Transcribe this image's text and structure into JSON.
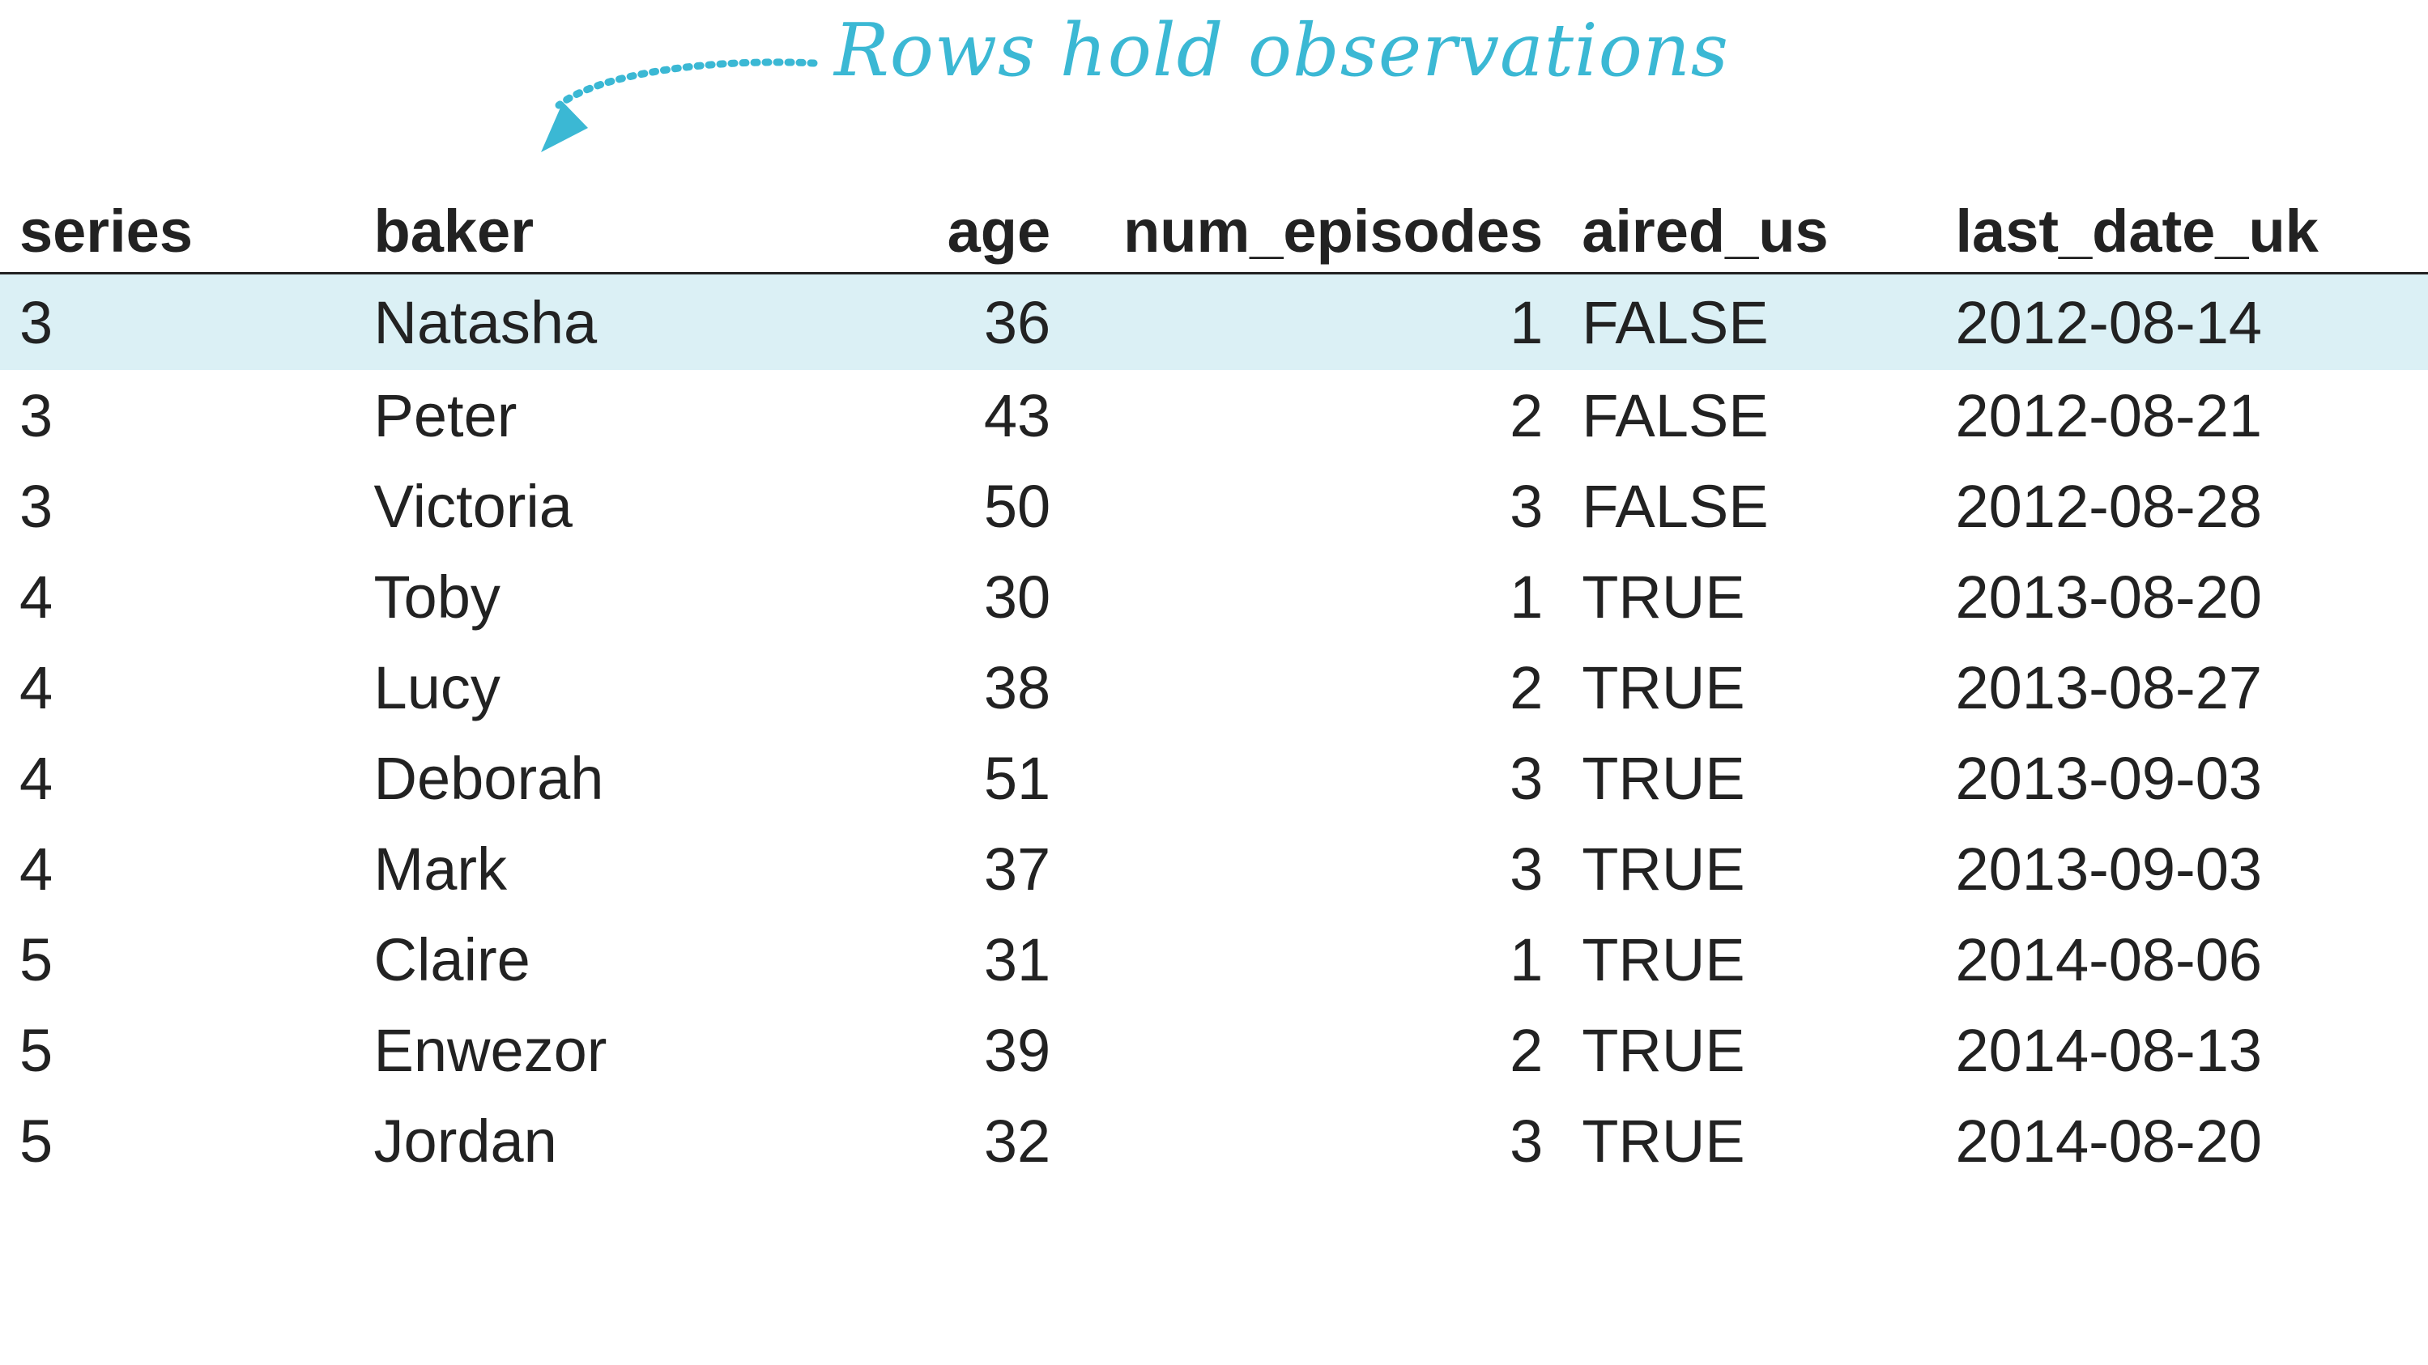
{
  "annotation": {
    "text": "Rows hold observations",
    "color": "#3bb8d4"
  },
  "table": {
    "header_keys": [
      "series",
      "baker",
      "age",
      "num_episodes",
      "aired_us",
      "last_date_uk"
    ],
    "headers": {
      "series": "series",
      "baker": "baker",
      "age": "age",
      "num_episodes": "num_episodes",
      "aired_us": "aired_us",
      "last_date_uk": "last_date_uk"
    },
    "highlight_color": "#dbf0f5",
    "rows": [
      {
        "series": "3",
        "baker": "Natasha",
        "age": "36",
        "num_episodes": "1",
        "aired_us": "FALSE",
        "last_date_uk": "2012-08-14"
      },
      {
        "series": "3",
        "baker": "Peter",
        "age": "43",
        "num_episodes": "2",
        "aired_us": "FALSE",
        "last_date_uk": "2012-08-21"
      },
      {
        "series": "3",
        "baker": "Victoria",
        "age": "50",
        "num_episodes": "3",
        "aired_us": "FALSE",
        "last_date_uk": "2012-08-28"
      },
      {
        "series": "4",
        "baker": "Toby",
        "age": "30",
        "num_episodes": "1",
        "aired_us": "TRUE",
        "last_date_uk": "2013-08-20"
      },
      {
        "series": "4",
        "baker": "Lucy",
        "age": "38",
        "num_episodes": "2",
        "aired_us": "TRUE",
        "last_date_uk": "2013-08-27"
      },
      {
        "series": "4",
        "baker": "Deborah",
        "age": "51",
        "num_episodes": "3",
        "aired_us": "TRUE",
        "last_date_uk": "2013-09-03"
      },
      {
        "series": "4",
        "baker": "Mark",
        "age": "37",
        "num_episodes": "3",
        "aired_us": "TRUE",
        "last_date_uk": "2013-09-03"
      },
      {
        "series": "5",
        "baker": "Claire",
        "age": "31",
        "num_episodes": "1",
        "aired_us": "TRUE",
        "last_date_uk": "2014-08-06"
      },
      {
        "series": "5",
        "baker": "Enwezor",
        "age": "39",
        "num_episodes": "2",
        "aired_us": "TRUE",
        "last_date_uk": "2014-08-13"
      },
      {
        "series": "5",
        "baker": "Jordan",
        "age": "32",
        "num_episodes": "3",
        "aired_us": "TRUE",
        "last_date_uk": "2014-08-20"
      }
    ]
  }
}
